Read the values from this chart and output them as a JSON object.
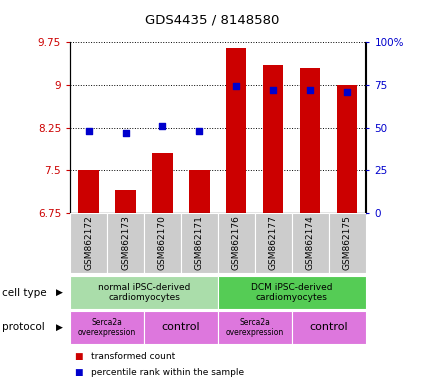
{
  "title": "GDS4435 / 8148580",
  "samples": [
    "GSM862172",
    "GSM862173",
    "GSM862170",
    "GSM862171",
    "GSM862176",
    "GSM862177",
    "GSM862174",
    "GSM862175"
  ],
  "bar_values": [
    7.5,
    7.15,
    7.8,
    7.5,
    9.65,
    9.35,
    9.3,
    9.0
  ],
  "bar_base": 6.75,
  "dot_values": [
    8.2,
    8.15,
    8.28,
    8.2,
    8.98,
    8.92,
    8.92,
    8.87
  ],
  "ylim_left": [
    6.75,
    9.75
  ],
  "ylim_right": [
    0,
    100
  ],
  "yticks_left": [
    6.75,
    7.5,
    8.25,
    9.0,
    9.75
  ],
  "yticks_right": [
    0,
    25,
    50,
    75,
    100
  ],
  "ytick_labels_left": [
    "6.75",
    "7.5",
    "8.25",
    "9",
    "9.75"
  ],
  "ytick_labels_right": [
    "0",
    "25",
    "50",
    "75",
    "100%"
  ],
  "bar_color": "#cc0000",
  "dot_color": "#0000cc",
  "cell_type_groups": [
    {
      "label": "normal iPSC-derived\ncardiomyocytes",
      "start": 0,
      "end": 4,
      "color": "#aaddaa"
    },
    {
      "label": "DCM iPSC-derived\ncardiomyocytes",
      "start": 4,
      "end": 8,
      "color": "#55cc55"
    }
  ],
  "protocol_groups": [
    {
      "label": "Serca2a\noverexpression",
      "start": 0,
      "end": 2,
      "color": "#dd77dd",
      "fontsize": 5.5
    },
    {
      "label": "control",
      "start": 2,
      "end": 4,
      "color": "#dd77dd",
      "fontsize": 8
    },
    {
      "label": "Serca2a\noverexpression",
      "start": 4,
      "end": 6,
      "color": "#dd77dd",
      "fontsize": 5.5
    },
    {
      "label": "control",
      "start": 6,
      "end": 8,
      "color": "#dd77dd",
      "fontsize": 8
    }
  ],
  "cell_type_label": "cell type",
  "protocol_label": "protocol",
  "legend_items": [
    {
      "label": "transformed count",
      "color": "#cc0000"
    },
    {
      "label": "percentile rank within the sample",
      "color": "#0000cc"
    }
  ],
  "sample_bg_color": "#cccccc",
  "figwidth": 4.25,
  "figheight": 3.84,
  "dpi": 100
}
